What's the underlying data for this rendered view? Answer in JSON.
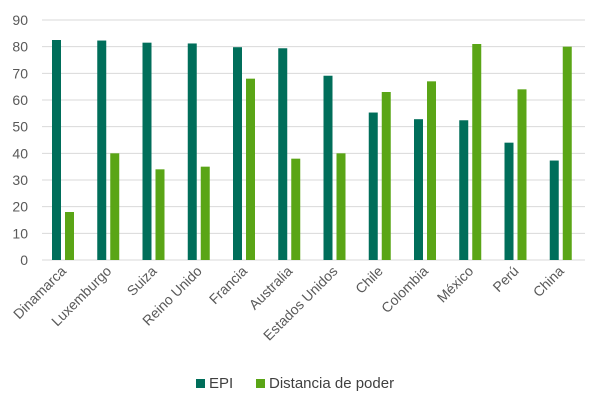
{
  "chart_data": {
    "type": "bar",
    "categories": [
      "Dinamarca",
      "Luxemburgo",
      "Suiza",
      "Reino Unido",
      "Francia",
      "Australia",
      "Estados Unidos",
      "Chile",
      "Colombia",
      "México",
      "Perú",
      "China"
    ],
    "series": [
      {
        "name": "EPI",
        "color": "#006e5a",
        "values": [
          82.5,
          82.3,
          81.5,
          81.2,
          79.8,
          79.4,
          69.1,
          55.3,
          52.8,
          52.4,
          44.0,
          37.3
        ]
      },
      {
        "name": "Distancia de poder",
        "color": "#5aa516",
        "values": [
          18,
          40,
          34,
          35,
          68,
          38,
          40,
          63,
          67,
          81,
          64,
          80
        ]
      }
    ],
    "yticks": [
      "0",
      "10",
      "20",
      "30",
      "40",
      "50",
      "60",
      "70",
      "80",
      "90"
    ],
    "ylim": [
      0,
      90
    ],
    "grid": true,
    "legend_position": "bottom"
  }
}
